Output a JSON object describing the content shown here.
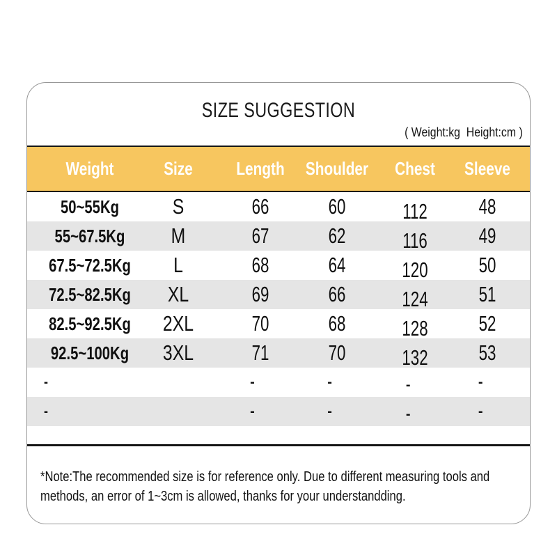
{
  "card": {
    "title": "SIZE SUGGESTION",
    "units_note": "( Weight:kg  Height:cm )",
    "footnote_line1": "*Note:The recommended size is for reference only. Due to different measuring tools and",
    "footnote_line2": "methods, an error of 1~3cm is allowed, thanks for your understandding."
  },
  "chart_data": {
    "type": "table",
    "title": "SIZE SUGGESTION",
    "columns": [
      "Weight",
      "Size",
      "Length",
      "Shoulder",
      "Chest",
      "Sleeve"
    ],
    "rows": [
      [
        "50~55Kg",
        "S",
        "66",
        "60",
        "112",
        "48"
      ],
      [
        "55~67.5Kg",
        "M",
        "67",
        "62",
        "116",
        "49"
      ],
      [
        "67.5~72.5Kg",
        "L",
        "68",
        "64",
        "120",
        "50"
      ],
      [
        "72.5~82.5Kg",
        "XL",
        "69",
        "66",
        "124",
        "51"
      ],
      [
        "82.5~92.5Kg",
        "2XL",
        "70",
        "68",
        "128",
        "52"
      ],
      [
        "92.5~100Kg",
        "3XL",
        "71",
        "70",
        "132",
        "53"
      ],
      [
        "-",
        "",
        "-",
        "-",
        "-",
        "-"
      ],
      [
        "-",
        "",
        "-",
        "-",
        "-",
        "-"
      ]
    ]
  },
  "colors": {
    "header_bg": "#F7C65F",
    "header_text": "#FFFFFF",
    "row_stripe": "#E5E5E5",
    "rule_line": "#161616",
    "card_border": "#979797"
  }
}
